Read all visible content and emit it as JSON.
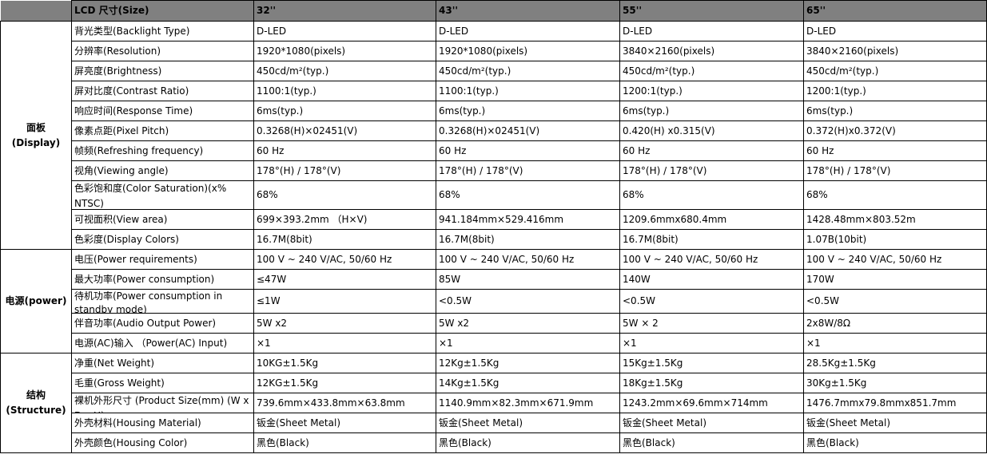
{
  "header": {
    "corner": "",
    "label": "LCD 尺寸(Size)",
    "sizes": [
      "32''",
      "43''",
      "55''",
      "65''"
    ]
  },
  "colors": {
    "header_bg": "#808080",
    "border": "#000000"
  },
  "sections": [
    {
      "title": "面板(Display)",
      "rows": [
        {
          "label": "背光类型(Backlight Type)",
          "values": [
            "D-LED",
            "D-LED",
            "D-LED",
            "D-LED"
          ]
        },
        {
          "label": "分辨率(Resolution)",
          "values": [
            "1920*1080(pixels)",
            "1920*1080(pixels)",
            "3840×2160(pixels)",
            "3840×2160(pixels)"
          ]
        },
        {
          "label": "屏亮度(Brightness)",
          "values": [
            "450cd/m²(typ.)",
            "450cd/m²(typ.)",
            "450cd/m²(typ.)",
            "450cd/m²(typ.)"
          ]
        },
        {
          "label": "屏对比度(Contrast Ratio)",
          "values": [
            "1100:1(typ.)",
            "1100:1(typ.)",
            "1200:1(typ.)",
            "1200:1(typ.)"
          ]
        },
        {
          "label": "响应时间(Response Time)",
          "values": [
            "6ms(typ.)",
            "6ms(typ.)",
            "6ms(typ.)",
            "6ms(typ.)"
          ]
        },
        {
          "label": "像素点距(Pixel Pitch)",
          "values": [
            "0.3268(H)×02451(V)",
            "0.3268(H)×02451(V)",
            "0.420(H) x0.315(V)",
            "0.372(H)x0.372(V)"
          ]
        },
        {
          "label": "帧频(Refreshing frequency)",
          "values": [
            "60 Hz",
            "60 Hz",
            "60 Hz",
            "60 Hz"
          ]
        },
        {
          "label": "视角(Viewing angle)",
          "values": [
            "178°(H) / 178°(V)",
            "178°(H) / 178°(V)",
            "178°(H) / 178°(V)",
            "178°(H) / 178°(V)"
          ]
        },
        {
          "label": "色彩饱和度(Color Saturation)(x% NTSC)",
          "values": [
            "68%",
            "68%",
            "68%",
            "68%"
          ],
          "tall": true
        },
        {
          "label": "可视面积(View area)",
          "values": [
            "699×393.2mm （H×V)",
            "941.184mm×529.416mm",
            "1209.6mmx680.4mm",
            "1428.48mm×803.52m"
          ]
        },
        {
          "label": "色彩度(Display Colors)",
          "values": [
            "16.7M(8bit)",
            "16.7M(8bit)",
            "16.7M(8bit)",
            "1.07B(10bit)"
          ]
        }
      ]
    },
    {
      "title": "电源(power)",
      "rows": [
        {
          "label": "电压(Power requirements)",
          "values": [
            "100 V ~ 240 V/AC, 50/60 Hz",
            "100 V ~ 240 V/AC, 50/60 Hz",
            "100 V ~ 240 V/AC, 50/60 Hz",
            "100 V ~ 240 V/AC, 50/60 Hz"
          ]
        },
        {
          "label": "最大功率(Power consumption)",
          "values": [
            "≤47W",
            "85W",
            "140W",
            "170W"
          ]
        },
        {
          "label": "待机功率(Power consumption in standby mode)",
          "values": [
            "≤1W",
            "<0.5W",
            "<0.5W",
            "<0.5W"
          ],
          "mid": true
        },
        {
          "label": "伴音功率(Audio Output Power)",
          "values": [
            "5W x2",
            "5W x2",
            "5W × 2",
            "2x8W/8Ω"
          ]
        },
        {
          "label": "电源(AC)输入 （Power(AC)  Input)",
          "values": [
            "×1",
            "×1",
            "×1",
            "×1"
          ]
        }
      ]
    },
    {
      "title": "结构(Structure)",
      "rows": [
        {
          "label": "净重(Net  Weight)",
          "values": [
            "10KG±1.5Kg",
            "12Kg±1.5Kg",
            "15Kg±1.5Kg",
            "28.5Kg±1.5Kg"
          ]
        },
        {
          "label": "毛重(Gross  Weight)",
          "values": [
            "12KG±1.5Kg",
            "14Kg±1.5Kg",
            "18Kg±1.5Kg",
            "30Kg±1.5Kg"
          ]
        },
        {
          "label": "裸机外形尺寸 (Product  Size(mm)  (W x D x H)",
          "values": [
            "739.6mm×433.8mm×63.8mm",
            "1140.9mm×82.3mm×671.9mm",
            "1243.2mm×69.6mm×714mm",
            "1476.7mmx79.8mmx851.7mm"
          ],
          "clip": true
        },
        {
          "label": "外壳材料(Housing  Material)",
          "values": [
            "钣金(Sheet  Metal)",
            "钣金(Sheet  Metal)",
            "钣金(Sheet  Metal)",
            "钣金(Sheet  Metal)"
          ]
        },
        {
          "label": "外壳颜色(Housing  Color)",
          "values": [
            "黑色(Black)",
            "黑色(Black)",
            "黑色(Black)",
            "黑色(Black)"
          ]
        }
      ]
    }
  ]
}
